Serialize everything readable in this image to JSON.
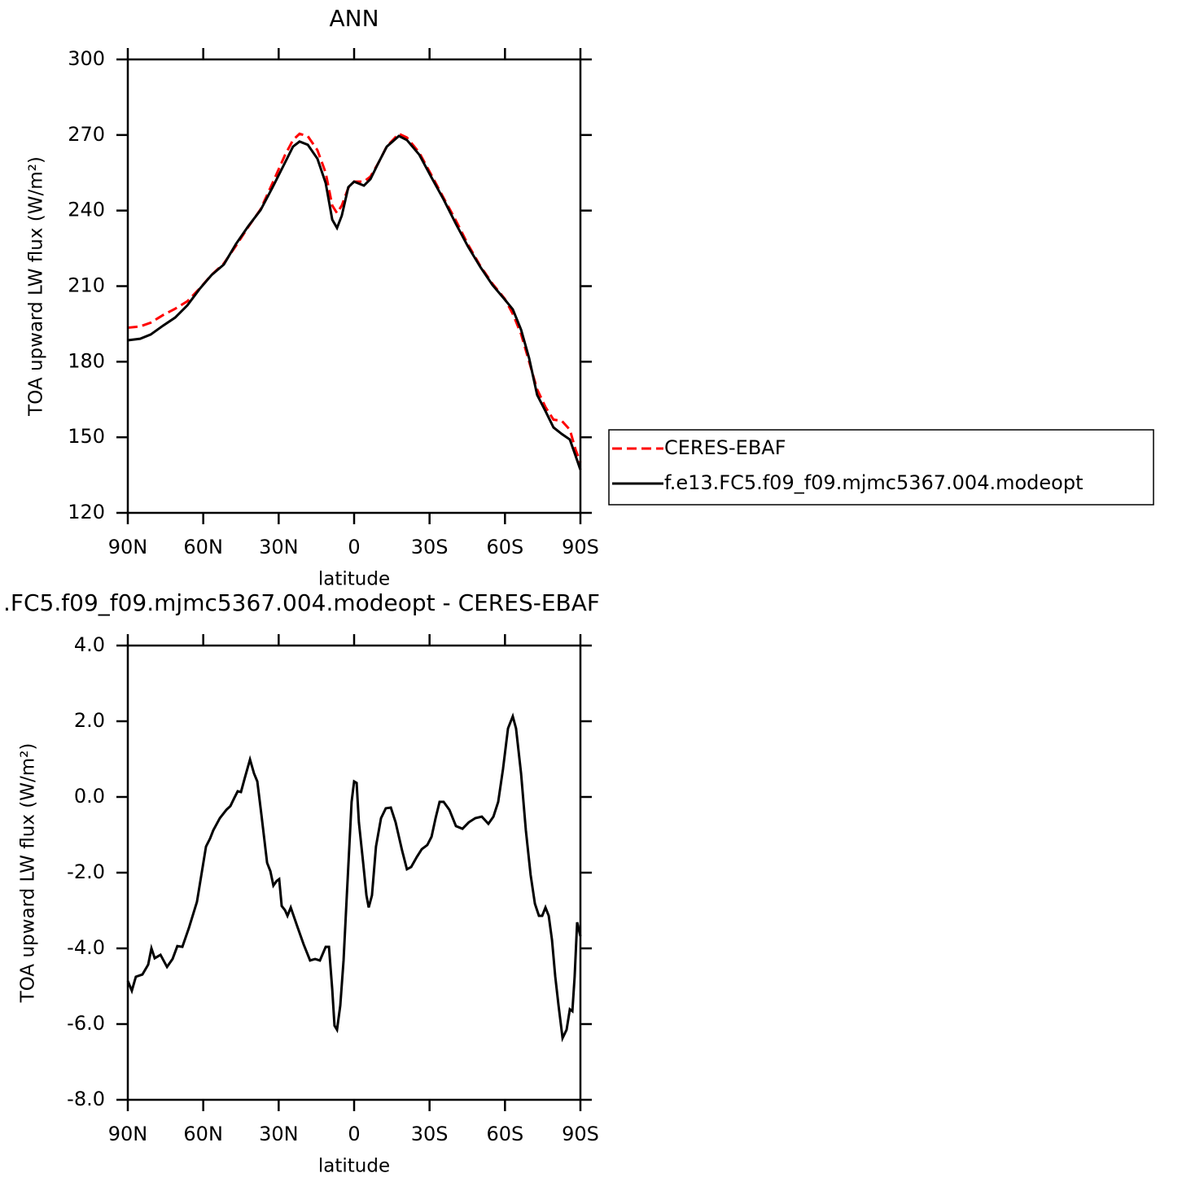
{
  "chart_data": [
    {
      "type": "line",
      "title": "ANN",
      "xlabel": "latitude",
      "ylabel": "TOA upward LW flux (W/m²)",
      "x": [
        90.0,
        85.1,
        80.9,
        76.0,
        71.2,
        66.3,
        61.5,
        56.7,
        51.8,
        47.0,
        42.1,
        37.2,
        32.4,
        27.5,
        24.3,
        21.7,
        18.4,
        14.6,
        11.3,
        8.7,
        6.8,
        4.9,
        2.3,
        0.0,
        -3.9,
        -6.5,
        -9.7,
        -13.0,
        -17.8,
        -21.0,
        -25.9,
        -30.8,
        -35.6,
        -40.5,
        -45.3,
        -50.2,
        -55.0,
        -59.9,
        -63.1,
        -66.4,
        -69.6,
        -72.8,
        -76.1,
        -79.3,
        -82.6,
        -85.8,
        -88.1,
        -90.0
      ],
      "series": [
        {
          "name": "CERES-EBAF",
          "color": "#ff0000",
          "linestyle": "dashed",
          "values": [
            193.5,
            194,
            195.5,
            198.5,
            201,
            204,
            209,
            214.5,
            219,
            226,
            233.5,
            240.5,
            251,
            262,
            268,
            270.5,
            269.5,
            264,
            255,
            242,
            239,
            242,
            249,
            251.5,
            251.5,
            253.5,
            259,
            265.5,
            270.5,
            269,
            263,
            254,
            245,
            236,
            226.5,
            218,
            211,
            205,
            199,
            191,
            180,
            169,
            162,
            157,
            156.5,
            153,
            145,
            140
          ]
        },
        {
          "name": "f.e13.FC5.f09_f09.mjmc5367.004.modeopt",
          "color": "#000000",
          "linestyle": "solid",
          "values": [
            188.5,
            189.1,
            190.8,
            194.3,
            197.5,
            202.4,
            208.8,
            214.4,
            218.6,
            226.7,
            233.8,
            240.2,
            249.3,
            259.0,
            265.4,
            267.4,
            266.1,
            260.6,
            250.9,
            236.4,
            233.1,
            238.0,
            249.3,
            251.5,
            249.9,
            252.5,
            259.0,
            265.4,
            269.6,
            268.0,
            262.2,
            253.1,
            244.4,
            234.7,
            225.7,
            217.6,
            210.5,
            204.7,
            200.8,
            192.7,
            181.4,
            166.8,
            160.4,
            153.9,
            151.3,
            149.1,
            142.6,
            137.1
          ]
        }
      ],
      "xlim": [
        90,
        -90
      ],
      "xticks": [
        {
          "value": 90,
          "label": "90N"
        },
        {
          "value": 60,
          "label": "60N"
        },
        {
          "value": 30,
          "label": "30N"
        },
        0,
        {
          "value": -30,
          "label": "30S"
        },
        {
          "value": -60,
          "label": "60S"
        },
        {
          "value": -90,
          "label": "90S"
        }
      ],
      "ylim": [
        120,
        300
      ],
      "yticks": [
        120,
        150,
        180,
        210,
        240,
        270,
        300
      ],
      "legend": "right"
    },
    {
      "type": "line",
      "title": ".FC5.f09_f09.mjmc5367.004.modeopt - CERES-EBAF",
      "xlabel": "latitude",
      "ylabel": "TOA upward LW flux (W/m²)",
      "x": [
        90.0,
        88.4,
        86.8,
        84.2,
        81.9,
        80.6,
        79.3,
        77.0,
        74.4,
        72.2,
        70.3,
        68.3,
        65.7,
        62.5,
        60.5,
        58.9,
        57.3,
        56.0,
        53.4,
        50.8,
        49.2,
        47.6,
        46.3,
        45.0,
        43.4,
        41.4,
        39.8,
        38.5,
        36.9,
        34.6,
        33.3,
        32.1,
        30.8,
        29.8,
        28.8,
        27.5,
        26.5,
        25.2,
        22.7,
        20.1,
        17.5,
        15.5,
        13.6,
        11.3,
        10.0,
        8.7,
        7.8,
        6.8,
        5.5,
        4.2,
        2.9,
        1.9,
        1.0,
        0.0,
        -1.0,
        -1.9,
        -3.6,
        -4.9,
        -5.8,
        -7.1,
        -8.7,
        -10.7,
        -12.6,
        -14.6,
        -16.5,
        -19.1,
        -21.0,
        -22.7,
        -24.9,
        -26.9,
        -29.1,
        -30.8,
        -32.4,
        -34.0,
        -35.6,
        -37.9,
        -40.5,
        -43.1,
        -45.6,
        -48.2,
        -50.8,
        -53.4,
        -55.4,
        -57.3,
        -59.2,
        -61.2,
        -63.1,
        -64.4,
        -66.4,
        -68.3,
        -70.2,
        -71.9,
        -73.5,
        -74.8,
        -76.1,
        -77.4,
        -78.7,
        -80.0,
        -81.3,
        -82.9,
        -84.5,
        -85.8,
        -86.8,
        -87.7,
        -88.7,
        -90.0
      ],
      "values": [
        -4.86,
        -5.12,
        -4.75,
        -4.69,
        -4.43,
        -4.0,
        -4.26,
        -4.17,
        -4.49,
        -4.28,
        -3.94,
        -3.96,
        -3.46,
        -2.77,
        -1.96,
        -1.31,
        -1.1,
        -0.88,
        -0.56,
        -0.34,
        -0.24,
        -0.02,
        0.15,
        0.13,
        0.52,
        0.99,
        0.62,
        0.41,
        -0.45,
        -1.74,
        -1.96,
        -2.34,
        -2.22,
        -2.17,
        -2.88,
        -2.99,
        -3.14,
        -2.92,
        -3.4,
        -3.89,
        -4.32,
        -4.28,
        -4.32,
        -3.96,
        -3.96,
        -5.08,
        -6.04,
        -6.15,
        -5.51,
        -4.32,
        -2.6,
        -1.31,
        -0.13,
        0.41,
        0.37,
        -0.67,
        -1.74,
        -2.6,
        -2.92,
        -2.6,
        -1.31,
        -0.56,
        -0.3,
        -0.28,
        -0.67,
        -1.42,
        -1.91,
        -1.85,
        -1.59,
        -1.38,
        -1.27,
        -1.05,
        -0.56,
        -0.13,
        -0.13,
        -0.34,
        -0.77,
        -0.84,
        -0.67,
        -0.56,
        -0.52,
        -0.71,
        -0.52,
        -0.13,
        0.73,
        1.81,
        2.13,
        1.81,
        0.62,
        -0.88,
        -2.06,
        -2.82,
        -3.14,
        -3.14,
        -2.92,
        -3.14,
        -3.78,
        -4.75,
        -5.51,
        -6.37,
        -6.15,
        -5.61,
        -5.66,
        -4.75,
        -3.31,
        -3.68
      ],
      "color": "#000000",
      "xlim": [
        90,
        -90
      ],
      "xticks": [
        {
          "value": 90,
          "label": "90N"
        },
        {
          "value": 60,
          "label": "60N"
        },
        {
          "value": 30,
          "label": "30N"
        },
        0,
        {
          "value": -30,
          "label": "30S"
        },
        {
          "value": -60,
          "label": "60S"
        },
        {
          "value": -90,
          "label": "90S"
        }
      ],
      "ylim": [
        -8,
        4
      ],
      "yticks": [
        {
          "value": -8,
          "label": "-8.0"
        },
        {
          "value": -6,
          "label": "-6.0"
        },
        {
          "value": -4,
          "label": "-4.0"
        },
        {
          "value": -2,
          "label": "-2.0"
        },
        {
          "value": 0,
          "label": "0.0"
        },
        {
          "value": 2,
          "label": "2.0"
        },
        {
          "value": 4,
          "label": "4.0"
        }
      ]
    }
  ]
}
